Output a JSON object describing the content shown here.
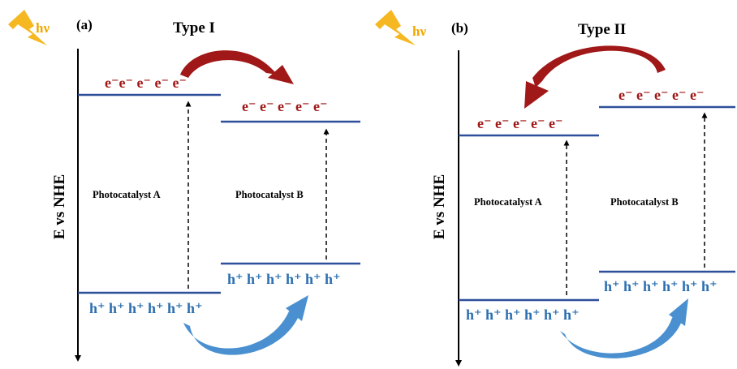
{
  "colors": {
    "axis": "#000000",
    "band": "#2e4f9a",
    "electron": "#a01818",
    "hole": "#2b6fb0",
    "arrow_red": "#a01818",
    "arrow_blue": "#4a90d0",
    "lightning": "#f5b820",
    "hv": "#f0a800"
  },
  "panel_a": {
    "label": "(a)",
    "hv": "hν",
    "title": "Type I",
    "axis_label": "E vs NHE",
    "photocatalyst_a": {
      "label": "Photocatalyst A",
      "electrons": "e⁻e⁻ e⁻ e⁻ e⁻",
      "holes": "h⁺ h⁺ h⁺ h⁺ h⁺ h⁺"
    },
    "photocatalyst_b": {
      "label": "Photocatalyst B",
      "electrons": "e⁻ e⁻ e⁻ e⁻ e⁻",
      "holes": "h⁺ h⁺ h⁺ h⁺ h⁺ h⁺"
    }
  },
  "panel_b": {
    "label": "(b)",
    "hv": "hν",
    "title": "Type II",
    "axis_label": "E vs NHE",
    "photocatalyst_a": {
      "label": "Photocatalyst A",
      "electrons": "e⁻ e⁻ e⁻ e⁻ e⁻",
      "holes": "h⁺ h⁺ h⁺ h⁺ h⁺ h⁺"
    },
    "photocatalyst_b": {
      "label": "Photocatalyst B",
      "electrons": "e⁻ e⁻ e⁻ e⁻ e⁻",
      "holes": "h⁺ h⁺ h⁺ h⁺ h⁺ h⁺"
    }
  }
}
